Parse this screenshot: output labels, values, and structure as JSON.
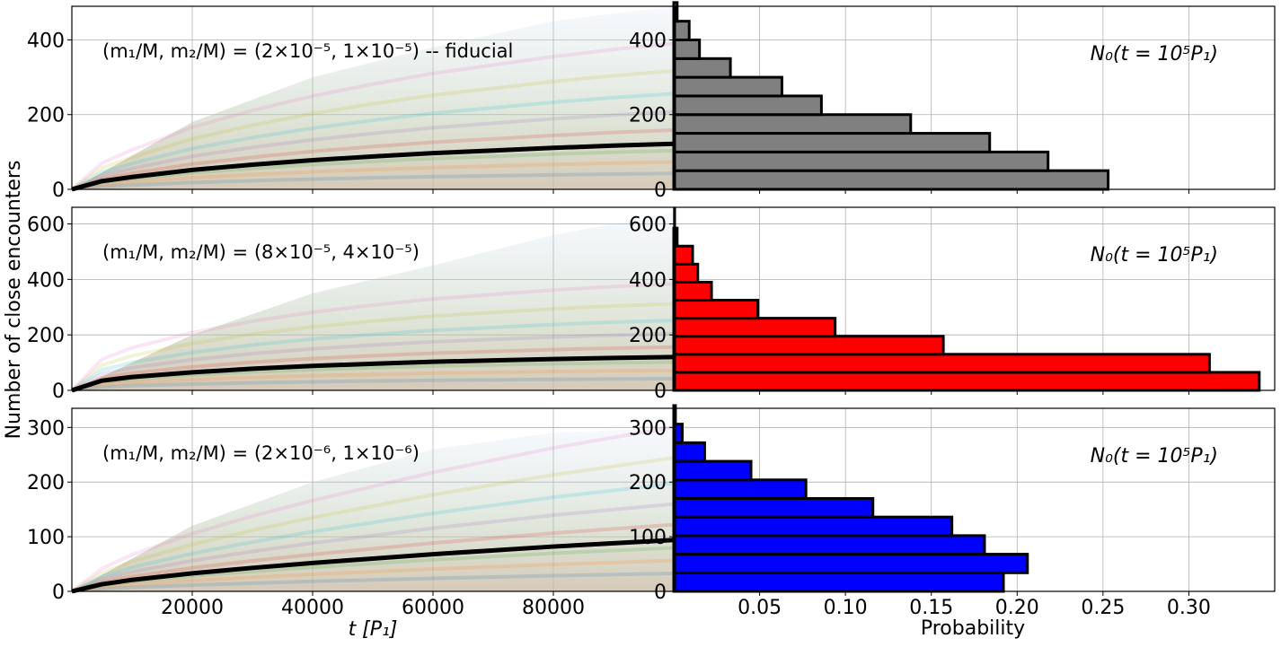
{
  "figure": {
    "ylabel": "Number of close encounters",
    "xlabel_left": "t [P₁]",
    "xlabel_right": "Probability",
    "x_ticks_left": [
      20000,
      40000,
      60000,
      80000
    ],
    "x_ticks_right": [
      0.05,
      0.1,
      0.15,
      0.2,
      0.25,
      0.3
    ]
  },
  "chart_data": [
    {
      "type": "line",
      "panel": "top-left",
      "annotation": "(m₁/M, m₂/M) = (2×10⁻⁵, 1×10⁻⁵) -- fiducial",
      "xlim": [
        0,
        100000
      ],
      "ylim": [
        0,
        490
      ],
      "yticks": [
        0,
        200,
        400
      ],
      "series": [
        {
          "kind": "mean",
          "color": "#000000",
          "x": [
            0,
            5000,
            10000,
            20000,
            30000,
            40000,
            50000,
            60000,
            70000,
            80000,
            90000,
            100000
          ],
          "values": [
            0,
            22,
            33,
            52,
            66,
            78,
            88,
            97,
            104,
            111,
            117,
            122
          ]
        }
      ],
      "faint_runs_max": [
        0,
        180,
        300,
        380,
        450,
        490
      ]
    },
    {
      "type": "bar",
      "orientation": "horizontal",
      "panel": "top-right",
      "annotation": "N₀(t = 10⁵P₁)",
      "bar_color": "#808080",
      "bin_width": 50,
      "bins": [
        0,
        50,
        100,
        150,
        200,
        250,
        300,
        350,
        400,
        450
      ],
      "values": [
        0.253,
        0.218,
        0.184,
        0.138,
        0.086,
        0.063,
        0.033,
        0.015,
        0.009,
        0.002
      ],
      "xlim": [
        0,
        0.35
      ],
      "ylim": [
        0,
        490
      ],
      "yticks": [
        0,
        200,
        400
      ]
    },
    {
      "type": "line",
      "panel": "middle-left",
      "annotation": "(m₁/M, m₂/M) = (8×10⁻⁵, 4×10⁻⁵)",
      "xlim": [
        0,
        100000
      ],
      "ylim": [
        0,
        660
      ],
      "yticks": [
        0,
        200,
        400,
        600
      ],
      "series": [
        {
          "kind": "mean",
          "color": "#000000",
          "x": [
            0,
            5000,
            10000,
            20000,
            30000,
            40000,
            50000,
            60000,
            70000,
            80000,
            90000,
            100000
          ],
          "values": [
            0,
            35,
            48,
            65,
            78,
            88,
            96,
            103,
            108,
            113,
            117,
            120
          ]
        }
      ],
      "faint_runs_max": [
        0,
        200,
        350,
        450,
        560,
        640
      ]
    },
    {
      "type": "bar",
      "orientation": "horizontal",
      "panel": "middle-right",
      "annotation": "N₀(t = 10⁵P₁)",
      "bar_color": "#ff0000",
      "bin_width": 65,
      "bins": [
        0,
        65,
        130,
        195,
        260,
        325,
        390,
        455,
        520,
        585
      ],
      "values": [
        0.341,
        0.312,
        0.157,
        0.094,
        0.049,
        0.022,
        0.014,
        0.011,
        0.002,
        0.0
      ],
      "xlim": [
        0,
        0.35
      ],
      "ylim": [
        0,
        660
      ],
      "yticks": [
        0,
        200,
        400,
        600
      ]
    },
    {
      "type": "line",
      "panel": "bottom-left",
      "annotation": "(m₁/M, m₂/M) = (2×10⁻⁶, 1×10⁻⁶)",
      "xlim": [
        0,
        100000
      ],
      "ylim": [
        0,
        335
      ],
      "yticks": [
        0,
        100,
        200,
        300
      ],
      "series": [
        {
          "kind": "mean",
          "color": "#000000",
          "x": [
            0,
            5000,
            10000,
            20000,
            30000,
            40000,
            50000,
            60000,
            70000,
            80000,
            90000,
            100000
          ],
          "values": [
            0,
            13,
            21,
            33,
            43,
            52,
            60,
            68,
            75,
            82,
            88,
            94
          ]
        }
      ],
      "faint_runs_max": [
        0,
        120,
        200,
        260,
        290,
        300
      ]
    },
    {
      "type": "bar",
      "orientation": "horizontal",
      "panel": "bottom-right",
      "annotation": "N₀(t = 10⁵P₁)",
      "bar_color": "#0000ff",
      "bin_width": 34,
      "bins": [
        0,
        34,
        68,
        102,
        136,
        170,
        204,
        238,
        272,
        306
      ],
      "values": [
        0.192,
        0.206,
        0.181,
        0.162,
        0.116,
        0.077,
        0.045,
        0.018,
        0.005,
        0.001
      ],
      "xlim": [
        0,
        0.35
      ],
      "ylim": [
        0,
        335
      ],
      "yticks": [
        0,
        100,
        200,
        300
      ]
    }
  ]
}
